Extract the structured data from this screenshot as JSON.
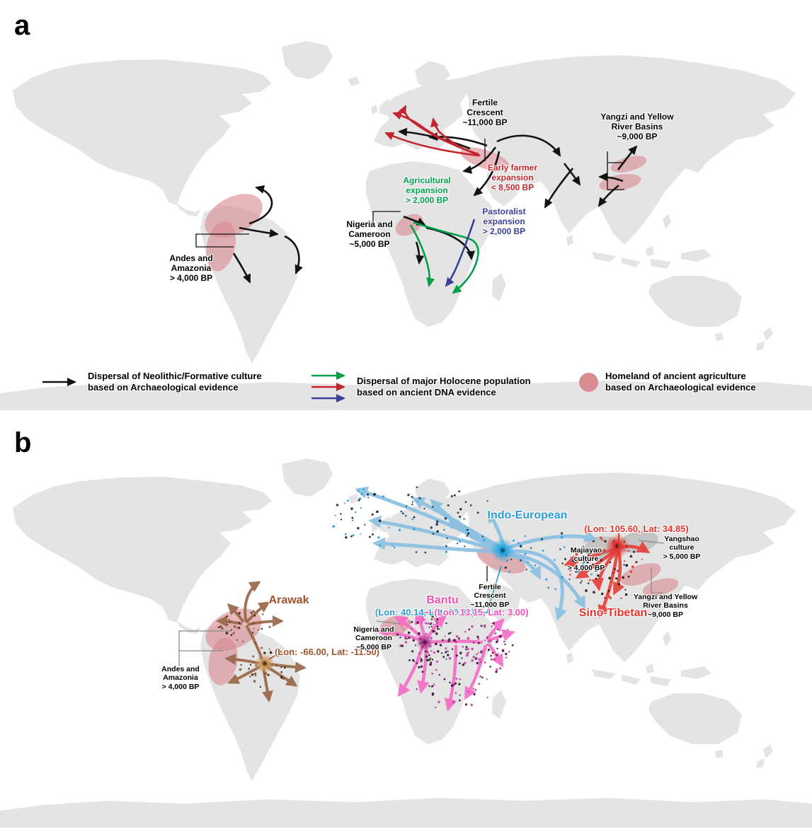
{
  "figure_type": "Two-panel world map figure on agricultural and language dispersals",
  "panel_a": {
    "label": "a",
    "annotations": {
      "fertile_crescent": "Fertile\nCrescent\n~11,000 BP",
      "yangzi_yellow": "Yangzi and Yellow\nRiver Basins\n~9,000 BP",
      "early_farmer": "Early farmer\nexpansion\n< 8,500 BP",
      "agricultural": "Agricultural\nexpansion\n> 2,000 BP",
      "pastoralist": "Pastoralist\nexpansion\n> 2,000 BP",
      "nigeria_cameroon": "Nigeria and\nCameroon\n~5,000 BP",
      "andes_amazonia": "Andes and\nAmazonia\n> 4,000 BP"
    },
    "legend": {
      "item1": "Dispersal of Neolithic/Formative culture\nbased on Archaeological evidence",
      "item2": "Dispersal of major Holocene population\nbased on ancient DNA evidence",
      "item3": "Homeland of ancient agriculture\nbased on Archaeological evidence"
    }
  },
  "panel_b": {
    "label": "b",
    "families": {
      "indo_european": {
        "name": "Indo-European",
        "origin": "(Lon: 40.14, Lat: 39.92)",
        "color": "#2b9cd8"
      },
      "sino_tibetan": {
        "name": "Sino-Tibetan",
        "origin": "(Lon: 105.60, Lat: 34.85)",
        "color": "#e8322c"
      },
      "bantu": {
        "name": "Bantu",
        "origin": "(Lon: 13.15, Lat: 3.00)",
        "color": "#f050b4"
      },
      "arawak": {
        "name": "Arawak",
        "origin": "(Lon: -66.00, Lat: -11.50)",
        "color": "#a0522d"
      }
    },
    "annotations": {
      "fertile_crescent": "Fertile\nCrescent\n~11,000 BP",
      "majiayao": "Majiayao\nculture\n> 4,000 BP",
      "yangshao": "Yangshao\nculture\n> 5,000 BP",
      "yangzi_yellow": "Yangzi and Yellow\nRiver Basins\n~9,000 BP",
      "nigeria_cameroon": "Nigeria and\nCameroon\n~5,000 BP",
      "andes_amazonia": "Andes and\nAmazonia\n> 4,000 BP"
    }
  },
  "colors": {
    "land": "#e4e4e4",
    "homeland_pink": "#d98b92",
    "archaeology_arrow": "#121212",
    "dna_arrow_green": "#00a049",
    "dna_arrow_red": "#c4242b",
    "dna_arrow_blue": "#3c3f99",
    "indo_european": "#2b9cd8",
    "sino_tibetan": "#e8322c",
    "bantu": "#f050b4",
    "arawak": "#a0522d"
  }
}
